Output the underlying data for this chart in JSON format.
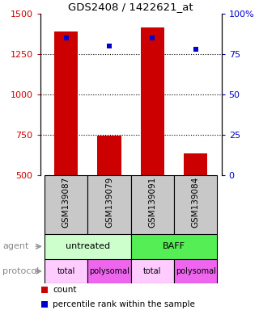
{
  "title": "GDS2408 / 1422621_at",
  "samples": [
    "GSM139087",
    "GSM139079",
    "GSM139091",
    "GSM139084"
  ],
  "bar_values": [
    1390,
    745,
    1415,
    635
  ],
  "percentile_values": [
    85,
    80,
    85,
    78
  ],
  "bar_color": "#cc0000",
  "percentile_color": "#0000cc",
  "ylim_left": [
    500,
    1500
  ],
  "ylim_right": [
    0,
    100
  ],
  "yticks_left": [
    500,
    750,
    1000,
    1250,
    1500
  ],
  "yticks_right": [
    0,
    25,
    50,
    75,
    100
  ],
  "ytick_labels_right": [
    "0",
    "25",
    "50",
    "75",
    "100%"
  ],
  "grid_values": [
    750,
    1000,
    1250
  ],
  "agent_labels": [
    "untreated",
    "BAFF"
  ],
  "agent_colors": [
    "#ccffcc",
    "#55ee55"
  ],
  "protocol_labels": [
    "total",
    "polysomal",
    "total",
    "polysomal"
  ],
  "protocol_colors": [
    "#ffccff",
    "#ee66ee",
    "#ffccff",
    "#ee66ee"
  ],
  "sample_bg_color": "#c8c8c8",
  "legend_count_label": "count",
  "legend_pct_label": "percentile rank within the sample",
  "row_label_agent": "agent",
  "row_label_protocol": "protocol",
  "background_color": "#ffffff"
}
